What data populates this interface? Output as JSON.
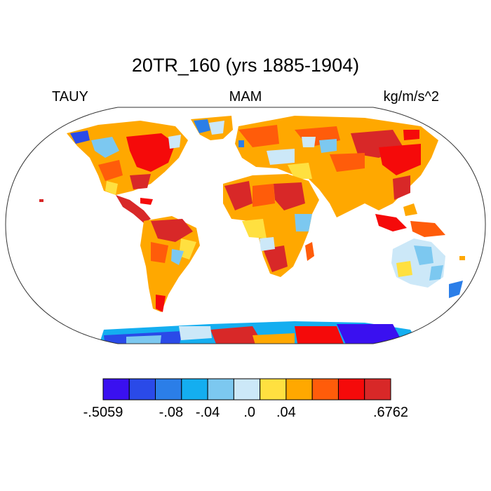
{
  "title": "20TR_160 (yrs 1885-1904)",
  "left_string": "TAUY",
  "center_string": "MAM",
  "right_string": "kg/m/s^2",
  "colorbar": {
    "colors": [
      "#3a10f0",
      "#2a4ae8",
      "#2b7ee8",
      "#14aef0",
      "#7cc8f0",
      "#cce8f8",
      "#ffe040",
      "#ffa800",
      "#ff5c0a",
      "#f50a0a",
      "#d82828"
    ],
    "labels": [
      {
        "text": "-.5059",
        "boundary": 0
      },
      {
        "text": "-.08",
        "boundary": 2.6
      },
      {
        "text": "-.04",
        "boundary": 4
      },
      {
        "text": ".0",
        "boundary": 5.6
      },
      {
        "text": ".04",
        "boundary": 7
      },
      {
        "text": ".6762",
        "boundary": 11
      }
    ]
  },
  "map": {
    "projection": "robinson",
    "ocean_color": "#ffffff",
    "coastline_color": "#000000"
  }
}
